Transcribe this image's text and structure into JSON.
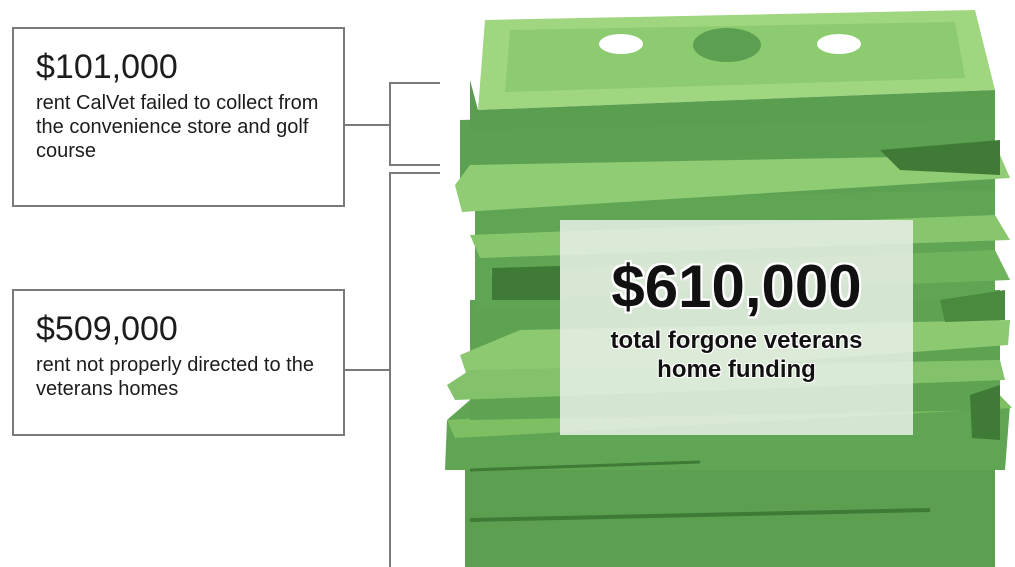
{
  "callouts": [
    {
      "amount": "$101,000",
      "description": "rent CalVet failed to collect from the convenience store and golf course"
    },
    {
      "amount": "$509,000",
      "description": "rent not properly directed to the veterans homes"
    }
  ],
  "total": {
    "amount": "$610,000",
    "description": "total forgone veterans home funding"
  },
  "colors": {
    "bill_green": "#5a9e4f",
    "bill_light": "#8dc972",
    "bill_dark": "#3f7a36",
    "bill_top": "#9fd67f",
    "connector": "#7a7a7a"
  }
}
